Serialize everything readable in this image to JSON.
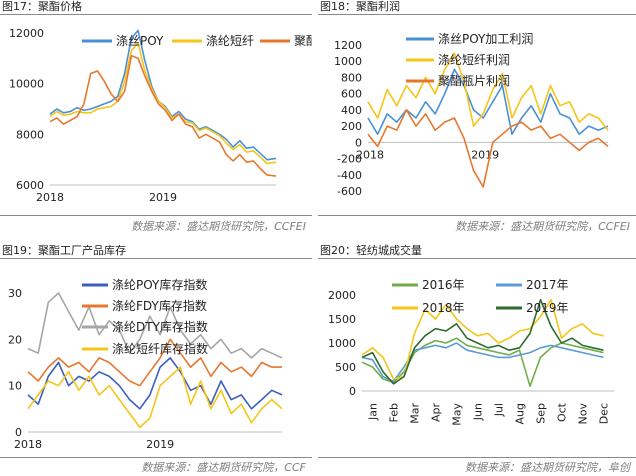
{
  "figures": {
    "f17": {
      "title": "图17：聚酯价格",
      "source": "数据来源：盛达期货研究院，CCFEI"
    },
    "f18": {
      "title": "图18：聚酯利润",
      "source": "数据来源：盛达期货研究院，CCFEI"
    },
    "f19": {
      "title": "图19：聚酯工厂产品库存",
      "source": "数据来源：盛达期货研究院，CCF"
    },
    "f20": {
      "title": "图20：轻纺城成交量",
      "source": "数据来源：盛达期货研究院，阜创"
    }
  },
  "chart_data": [
    {
      "type": "line",
      "ylim": [
        6000,
        12000
      ],
      "yticks": [
        "12000",
        "10000",
        "8000",
        "6000"
      ],
      "xticks": [
        "2018",
        "2019"
      ],
      "legend_position": "top",
      "series": [
        {
          "name": "涤丝POY",
          "color": "#4a90d9",
          "x": [
            0,
            3,
            6,
            9,
            12,
            15,
            18,
            21,
            24,
            27,
            30,
            33,
            36,
            39,
            42,
            45,
            48,
            51,
            54,
            57,
            60,
            63,
            66,
            69,
            72,
            75,
            78,
            81,
            84,
            87,
            90,
            93,
            96,
            100
          ],
          "y": [
            8800,
            9000,
            8850,
            8900,
            9050,
            8950,
            9000,
            9100,
            9200,
            9300,
            9500,
            10400,
            11800,
            12100,
            10900,
            9900,
            9300,
            9100,
            8700,
            8900,
            8600,
            8500,
            8200,
            8300,
            8150,
            8000,
            7800,
            7500,
            7750,
            7450,
            7500,
            7250,
            7000,
            7050
          ]
        },
        {
          "name": "涤纶短纤",
          "color": "#f5c518",
          "x": [
            0,
            3,
            6,
            9,
            12,
            15,
            18,
            21,
            24,
            27,
            30,
            33,
            36,
            39,
            42,
            45,
            48,
            51,
            54,
            57,
            60,
            63,
            66,
            69,
            72,
            75,
            78,
            81,
            84,
            87,
            90,
            93,
            96,
            100
          ],
          "y": [
            8700,
            8900,
            8750,
            8800,
            8900,
            8850,
            8850,
            9000,
            9050,
            9100,
            9300,
            10100,
            11300,
            11600,
            10500,
            9800,
            9300,
            9050,
            8650,
            8800,
            8500,
            8450,
            8150,
            8250,
            8100,
            7950,
            7650,
            7400,
            7600,
            7300,
            7350,
            7100,
            6850,
            6900
          ]
        },
        {
          "name": "聚酯瓶片",
          "color": "#e8772e",
          "x": [
            0,
            3,
            6,
            9,
            12,
            15,
            18,
            21,
            24,
            27,
            30,
            33,
            36,
            39,
            42,
            45,
            48,
            51,
            54,
            57,
            60,
            63,
            66,
            69,
            72,
            75,
            78,
            81,
            84,
            87,
            90,
            93,
            96,
            100
          ],
          "y": [
            8500,
            8650,
            8400,
            8550,
            8700,
            9200,
            10400,
            10500,
            10100,
            9600,
            9300,
            9700,
            11100,
            11000,
            10300,
            9700,
            9200,
            8950,
            8550,
            8800,
            8400,
            8300,
            7850,
            8000,
            7850,
            7700,
            7200,
            6950,
            7200,
            6900,
            6950,
            6650,
            6400,
            6350
          ]
        }
      ]
    },
    {
      "type": "line",
      "ylim": [
        -600,
        1200
      ],
      "yticks": [
        "1200",
        "1000",
        "800",
        "600",
        "400",
        "200",
        "0",
        "-200",
        "-400",
        "-600"
      ],
      "xticks": [
        "2018",
        "2019"
      ],
      "legend_position": "top-right",
      "series": [
        {
          "name": "涤丝POY加工利润",
          "color": "#4a90d9",
          "x": [
            0,
            4,
            8,
            12,
            16,
            20,
            24,
            28,
            32,
            36,
            40,
            44,
            48,
            52,
            56,
            60,
            64,
            68,
            72,
            76,
            80,
            84,
            88,
            92,
            96,
            100
          ],
          "y": [
            300,
            100,
            350,
            250,
            400,
            300,
            500,
            350,
            600,
            900,
            700,
            400,
            300,
            500,
            700,
            100,
            300,
            450,
            250,
            600,
            350,
            300,
            100,
            200,
            150,
            200
          ]
        },
        {
          "name": "涤纶短纤利润",
          "color": "#f5c518",
          "x": [
            0,
            4,
            8,
            12,
            16,
            20,
            24,
            28,
            32,
            36,
            40,
            44,
            48,
            52,
            56,
            60,
            64,
            68,
            72,
            76,
            80,
            84,
            88,
            92,
            96,
            100
          ],
          "y": [
            500,
            300,
            650,
            450,
            700,
            550,
            800,
            600,
            900,
            1100,
            750,
            200,
            350,
            650,
            850,
            300,
            550,
            700,
            350,
            700,
            450,
            500,
            250,
            350,
            300,
            150
          ]
        },
        {
          "name": "聚酯瓶片利润",
          "color": "#e8772e",
          "x": [
            0,
            4,
            8,
            12,
            16,
            20,
            24,
            28,
            32,
            36,
            40,
            44,
            48,
            52,
            56,
            60,
            64,
            68,
            72,
            76,
            80,
            84,
            88,
            92,
            96,
            100
          ],
          "y": [
            100,
            -50,
            200,
            150,
            400,
            200,
            350,
            150,
            250,
            300,
            50,
            -350,
            -550,
            0,
            100,
            200,
            250,
            150,
            200,
            50,
            100,
            0,
            -100,
            0,
            50,
            -50
          ]
        }
      ]
    },
    {
      "type": "line",
      "ylim": [
        0,
        30
      ],
      "yticks": [
        "30",
        "20",
        "10",
        "0"
      ],
      "xticks": [
        "2018",
        "2019"
      ],
      "legend_position": "top-left",
      "series": [
        {
          "name": "涤纶POY库存指数",
          "color": "#3a5fbf",
          "x": [
            0,
            4,
            8,
            12,
            16,
            20,
            24,
            28,
            32,
            36,
            40,
            44,
            48,
            52,
            56,
            60,
            64,
            68,
            72,
            76,
            80,
            84,
            88,
            92,
            96,
            100
          ],
          "y": [
            8,
            6,
            12,
            15,
            10,
            12,
            11,
            13,
            12,
            10,
            7,
            5,
            8,
            14,
            16,
            13,
            9,
            10,
            6,
            11,
            7,
            8,
            5,
            7,
            9,
            8
          ]
        },
        {
          "name": "涤纶FDY库存指数",
          "color": "#e8772e",
          "x": [
            0,
            4,
            8,
            12,
            16,
            20,
            24,
            28,
            32,
            36,
            40,
            44,
            48,
            52,
            56,
            60,
            64,
            68,
            72,
            76,
            80,
            84,
            88,
            92,
            96,
            100
          ],
          "y": [
            13,
            11,
            14,
            16,
            14,
            15,
            13,
            16,
            15,
            13,
            11,
            10,
            13,
            16,
            20,
            17,
            14,
            16,
            12,
            15,
            13,
            14,
            12,
            15,
            14,
            14
          ]
        },
        {
          "name": "涤纶DTY库存指数",
          "color": "#a6a6a6",
          "x": [
            0,
            4,
            8,
            12,
            16,
            20,
            24,
            28,
            32,
            36,
            40,
            44,
            48,
            52,
            56,
            60,
            64,
            68,
            72,
            76,
            80,
            84,
            88,
            92,
            96,
            100
          ],
          "y": [
            18,
            17,
            28,
            30,
            26,
            22,
            27,
            21,
            24,
            22,
            17,
            20,
            25,
            21,
            27,
            22,
            19,
            21,
            18,
            20,
            17,
            18,
            16,
            18,
            17,
            16
          ]
        },
        {
          "name": "涤纶短纤库存指数",
          "color": "#f5c518",
          "x": [
            0,
            4,
            8,
            12,
            16,
            20,
            24,
            28,
            32,
            36,
            40,
            44,
            48,
            52,
            56,
            60,
            64,
            68,
            72,
            76,
            80,
            84,
            88,
            92,
            96,
            100
          ],
          "y": [
            5,
            8,
            11,
            10,
            13,
            9,
            12,
            8,
            10,
            7,
            4,
            1,
            3,
            10,
            12,
            14,
            6,
            11,
            5,
            9,
            4,
            6,
            2,
            5,
            7,
            5
          ]
        }
      ]
    },
    {
      "type": "line",
      "ylim": [
        0,
        2000
      ],
      "yticks": [
        "2000",
        "1500",
        "1000",
        "500",
        "0"
      ],
      "xticks": [
        "Jan",
        "Feb",
        "Mar",
        "Apr",
        "May",
        "Jun",
        "Jul",
        "Aug",
        "Sep",
        "Oct",
        "Nov",
        "Dec"
      ],
      "legend_position": "top",
      "series": [
        {
          "name": "2016年",
          "color": "#70ad47",
          "x": [
            0,
            0.5,
            1,
            1.5,
            2,
            2.5,
            3,
            3.5,
            4,
            4.5,
            5,
            5.5,
            6,
            6.5,
            7,
            7.5,
            8,
            8.5,
            9,
            9.5,
            10,
            10.5,
            11,
            11.5
          ],
          "y": [
            600,
            500,
            250,
            180,
            400,
            800,
            950,
            1050,
            1000,
            1100,
            950,
            900,
            850,
            800,
            750,
            850,
            100,
            700,
            900,
            1000,
            950,
            900,
            850,
            800
          ]
        },
        {
          "name": "2017年",
          "color": "#5b9bd5",
          "x": [
            0,
            0.5,
            1,
            1.5,
            2,
            2.5,
            3,
            3.5,
            4,
            4.5,
            5,
            5.5,
            6,
            6.5,
            7,
            7.5,
            8,
            8.5,
            9,
            9.5,
            10,
            10.5,
            11,
            11.5
          ],
          "y": [
            700,
            650,
            300,
            200,
            500,
            850,
            900,
            950,
            900,
            1000,
            850,
            800,
            750,
            700,
            700,
            750,
            800,
            900,
            950,
            900,
            850,
            800,
            750,
            700
          ]
        },
        {
          "name": "2018年",
          "color": "#f5c518",
          "x": [
            0,
            0.5,
            1,
            1.5,
            2,
            2.5,
            3,
            3.5,
            4,
            4.5,
            5,
            5.5,
            6,
            6.5,
            7,
            7.5,
            8,
            8.5,
            9,
            9.5,
            10,
            10.5,
            11,
            11.5
          ],
          "y": [
            750,
            900,
            700,
            250,
            300,
            1200,
            1700,
            1500,
            1800,
            1500,
            1300,
            1150,
            1200,
            1000,
            1100,
            1250,
            1300,
            1550,
            1900,
            1100,
            1300,
            1400,
            1200,
            1150
          ]
        },
        {
          "name": "2019年",
          "color": "#2e6b30",
          "x": [
            0,
            0.5,
            1,
            1.5,
            2,
            2.5,
            3,
            3.5,
            4,
            4.5,
            5,
            5.5,
            6,
            6.5,
            7,
            7.5,
            8,
            8.5,
            9,
            9.5,
            10,
            10.5,
            11,
            11.5
          ],
          "y": [
            700,
            800,
            400,
            150,
            300,
            900,
            1150,
            1300,
            1250,
            1400,
            1100,
            1000,
            900,
            950,
            850,
            900,
            1200,
            1900,
            1350,
            1000,
            1100,
            950,
            900,
            850
          ]
        }
      ]
    }
  ]
}
